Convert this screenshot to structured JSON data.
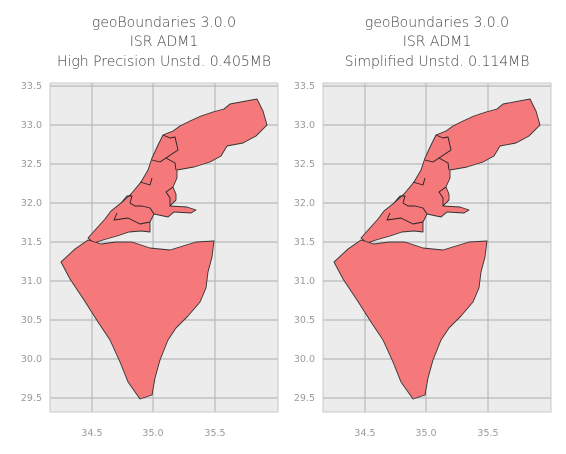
{
  "panels": [
    {
      "title_line1": "geoBoundaries 3.0.0",
      "title_line2": "ISR ADM1",
      "title_line3": "High Precision Unstd. 0.405MB"
    },
    {
      "title_line1": "geoBoundaries 3.0.0",
      "title_line2": "ISR ADM1",
      "title_line3": "Simplified Unstd. 0.114MB"
    }
  ],
  "axes": {
    "x_ticks": [
      "34.5",
      "35.0",
      "35.5"
    ],
    "y_ticks": [
      "33.5",
      "33.0",
      "32.5",
      "32.0",
      "31.5",
      "31.0",
      "30.5",
      "30.0",
      "29.5"
    ]
  },
  "colors": {
    "fill": "#f5787a",
    "edge": "#333333",
    "background": "#ececec",
    "grid": "#b9b9b9"
  }
}
